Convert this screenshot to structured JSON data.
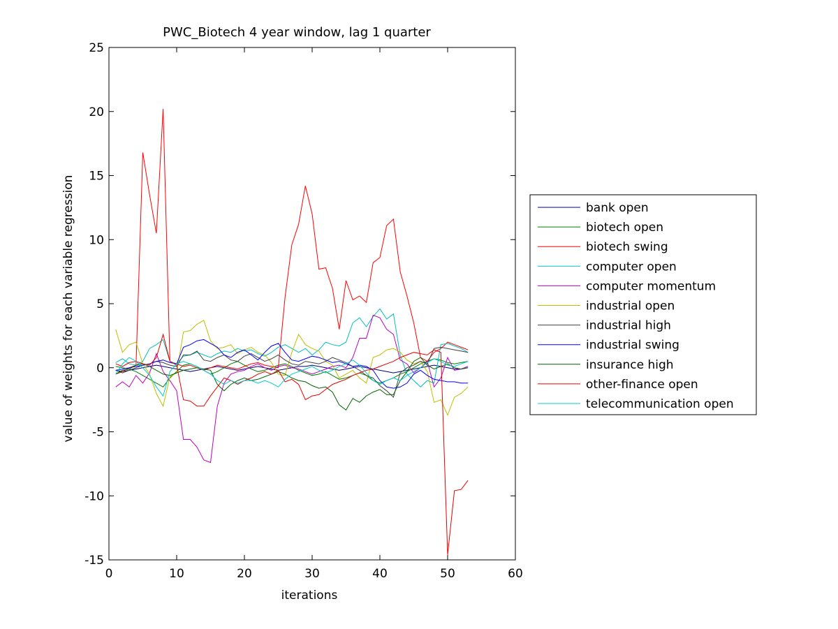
{
  "chart_data": {
    "type": "line",
    "title": "PWC_Biotech 4 year window, lag 1 quarter",
    "xlabel": "iterations",
    "ylabel": "value of weights for each variable regression",
    "xlim": [
      0,
      60
    ],
    "ylim": [
      -15,
      25
    ],
    "xticks": [
      "0",
      "10",
      "20",
      "30",
      "40",
      "50",
      "60"
    ],
    "yticks": [
      "-15",
      "-10",
      "-5",
      "0",
      "5",
      "10",
      "15",
      "20",
      "25"
    ],
    "grid": false,
    "legend_position": "right",
    "x": [
      1,
      2,
      3,
      4,
      5,
      6,
      7,
      8,
      9,
      10,
      11,
      12,
      13,
      14,
      15,
      16,
      17,
      18,
      19,
      20,
      21,
      22,
      23,
      24,
      25,
      26,
      27,
      28,
      29,
      30,
      31,
      32,
      33,
      34,
      35,
      36,
      37,
      38,
      39,
      40,
      41,
      42,
      43,
      44,
      45,
      46,
      47,
      48,
      49,
      50,
      51,
      52,
      53
    ],
    "series": [
      {
        "name": "bank open",
        "color": "#000080",
        "values": [
          -0.2,
          -0.3,
          -0.2,
          -0.1,
          0.0,
          0.1,
          0.2,
          0.1,
          0.0,
          -0.1,
          -0.2,
          -0.3,
          -0.2,
          -0.1,
          0.0,
          0.1,
          0.0,
          -0.1,
          -0.2,
          -0.1,
          0.0,
          0.1,
          0.0,
          -0.1,
          -0.2,
          -0.1,
          0.0,
          0.1,
          0.1,
          0.2,
          0.1,
          0.0,
          -0.1,
          -0.2,
          -0.1,
          0.0,
          0.1,
          0.0,
          -0.1,
          -0.2,
          -0.3,
          -0.4,
          -0.3,
          -0.2,
          -0.1,
          0.0,
          0.1,
          0.2,
          0.1,
          0.0,
          -0.1,
          -0.1,
          0.0
        ]
      },
      {
        "name": "biotech open",
        "color": "#008000",
        "values": [
          0.1,
          0.0,
          -0.1,
          -0.3,
          -0.6,
          -0.9,
          -1.2,
          -1.5,
          -0.8,
          -0.3,
          0.2,
          0.3,
          0.1,
          -0.2,
          -0.5,
          -0.3,
          0.0,
          0.3,
          0.5,
          0.2,
          -0.1,
          -0.3,
          -0.2,
          0.0,
          0.2,
          0.3,
          0.1,
          -0.2,
          -0.4,
          -0.6,
          -0.5,
          -0.3,
          -0.6,
          -0.9,
          -0.8,
          -0.6,
          -0.4,
          -0.6,
          -1.0,
          -1.2,
          -1.0,
          -0.8,
          -0.5,
          -0.3,
          0.0,
          0.3,
          0.5,
          0.7,
          0.6,
          0.4,
          0.3,
          0.4,
          0.5
        ]
      },
      {
        "name": "biotech swing",
        "color": "#ff0000",
        "values": [
          -0.5,
          -0.3,
          0.0,
          0.2,
          16.8,
          13.5,
          10.5,
          20.2,
          0.5,
          0.3,
          0.1,
          0.2,
          0.0,
          -0.2,
          0.0,
          0.2,
          0.1,
          0.0,
          -0.1,
          0.1,
          0.3,
          0.4,
          0.2,
          0.1,
          0.0,
          5.5,
          9.6,
          11.2,
          14.2,
          12.0,
          7.7,
          7.8,
          6.2,
          3.0,
          6.8,
          5.3,
          5.6,
          5.1,
          8.2,
          8.6,
          11.1,
          11.6,
          7.5,
          5.6,
          3.5,
          0.8,
          0.5,
          1.2,
          1.5,
          2.0,
          1.8,
          1.6,
          1.4
        ]
      },
      {
        "name": "computer open",
        "color": "#00bfbf",
        "values": [
          0.4,
          0.7,
          0.3,
          0.2,
          0.5,
          1.5,
          1.8,
          2.2,
          0.5,
          0.3,
          0.9,
          1.0,
          1.2,
          1.0,
          0.8,
          1.1,
          1.3,
          1.2,
          1.5,
          1.3,
          1.4,
          1.1,
          0.9,
          1.2,
          1.6,
          1.8,
          1.5,
          1.2,
          1.5,
          1.0,
          1.4,
          2.0,
          1.8,
          1.7,
          2.0,
          3.5,
          3.9,
          3.2,
          4.0,
          4.6,
          3.8,
          4.2,
          1.0,
          -0.5,
          -1.0,
          -1.5,
          -1.0,
          -1.2,
          1.8,
          1.9,
          1.7,
          1.5,
          1.2
        ]
      },
      {
        "name": "computer momentum",
        "color": "#bf00bf",
        "values": [
          -1.5,
          -1.1,
          -1.5,
          -0.6,
          -1.2,
          -0.4,
          1.1,
          -0.3,
          -1.0,
          -1.8,
          -5.6,
          -5.6,
          -6.2,
          -7.2,
          -7.4,
          -3.0,
          -1.2,
          -0.5,
          -0.3,
          -0.2,
          0.1,
          0.3,
          0.0,
          -0.2,
          0.1,
          0.2,
          0.0,
          -0.1,
          -0.3,
          -0.5,
          -0.3,
          -0.1,
          0.1,
          0.2,
          0.0,
          0.8,
          2.3,
          2.3,
          4.1,
          3.9,
          3.0,
          2.6,
          0.6,
          0.3,
          -0.4,
          0.0,
          0.5,
          -1.5,
          -0.8,
          0.8,
          -0.2,
          -0.1,
          0.1
        ]
      },
      {
        "name": "industrial open",
        "color": "#bfbf00",
        "values": [
          3.0,
          1.2,
          1.8,
          2.0,
          0.3,
          -0.5,
          -2.0,
          -3.0,
          -0.7,
          -0.4,
          2.8,
          2.9,
          3.4,
          3.7,
          2.1,
          1.5,
          1.6,
          1.8,
          1.1,
          1.4,
          1.6,
          1.2,
          1.0,
          0.4,
          -0.5,
          -0.6,
          1.2,
          2.6,
          1.8,
          1.5,
          1.3,
          0.5,
          0.2,
          -0.8,
          -0.5,
          -0.2,
          -0.8,
          -1.2,
          0.8,
          1.0,
          1.4,
          1.5,
          1.2,
          0.6,
          0.3,
          0.5,
          -0.3,
          -2.7,
          -2.5,
          -3.7,
          -2.3,
          -2.0,
          -1.5
        ]
      },
      {
        "name": "industrial high",
        "color": "#404040",
        "values": [
          -0.2,
          -0.4,
          -0.2,
          0.0,
          0.2,
          0.3,
          0.5,
          0.4,
          0.2,
          0.1,
          1.0,
          1.0,
          1.3,
          0.6,
          0.5,
          0.8,
          1.0,
          0.6,
          0.5,
          0.9,
          1.1,
          0.8,
          0.5,
          0.7,
          1.0,
          0.6,
          0.3,
          0.2,
          0.5,
          0.4,
          0.3,
          0.5,
          0.8,
          0.6,
          0.4,
          0.1,
          -0.2,
          -0.6,
          -0.8,
          -1.4,
          -1.8,
          -2.3,
          -0.4,
          0.0,
          0.2,
          0.5,
          0.3,
          1.5,
          1.6,
          1.5,
          1.4,
          1.3,
          1.2
        ]
      },
      {
        "name": "industrial swing",
        "color": "#0000ff",
        "values": [
          -0.2,
          -0.1,
          0.0,
          0.1,
          0.2,
          0.3,
          0.5,
          0.6,
          0.4,
          0.3,
          1.6,
          1.8,
          2.1,
          2.2,
          1.9,
          1.6,
          1.0,
          0.8,
          1.2,
          1.4,
          1.0,
          0.6,
          1.2,
          1.7,
          1.9,
          1.2,
          0.6,
          0.5,
          0.7,
          0.9,
          0.8,
          0.6,
          0.4,
          0.5,
          0.3,
          0.1,
          0.2,
          0.1,
          -0.2,
          -1.0,
          -1.5,
          -1.6,
          -1.5,
          -1.2,
          -0.5,
          -0.2,
          -0.6,
          -0.9,
          -1.0,
          -1.1,
          -1.1,
          -1.2,
          -1.2
        ]
      },
      {
        "name": "insurance high",
        "color": "#006400",
        "values": [
          -0.5,
          -0.2,
          -0.1,
          0.2,
          0.3,
          0.1,
          -0.2,
          -0.5,
          -0.6,
          -0.4,
          -0.2,
          -0.1,
          0.0,
          -0.1,
          -0.2,
          -1.3,
          -1.8,
          -1.3,
          -1.0,
          -0.8,
          -1.0,
          -0.9,
          -0.7,
          -0.5,
          -0.3,
          -0.5,
          -0.8,
          -1.0,
          -1.1,
          -1.4,
          -1.6,
          -1.5,
          -1.9,
          -2.9,
          -3.3,
          -2.4,
          -2.7,
          -2.2,
          -1.9,
          -1.7,
          -2.1,
          -2.1,
          -1.0,
          -0.3,
          0.5,
          0.8,
          0.2,
          -0.1,
          0.1,
          0.3,
          0.0,
          -0.1,
          0.0
        ]
      },
      {
        "name": "other-finance open",
        "color": "#e60000",
        "values": [
          0.3,
          0.1,
          0.4,
          0.5,
          0.3,
          0.2,
          0.8,
          2.6,
          0.5,
          0.2,
          -2.5,
          -2.6,
          -3.0,
          -3.0,
          -2.2,
          -1.5,
          -0.8,
          -1.0,
          -1.3,
          -1.0,
          -0.8,
          -0.5,
          -0.3,
          -0.5,
          -0.2,
          -1.1,
          -0.9,
          -1.3,
          -2.5,
          -2.2,
          -2.1,
          -1.7,
          -1.3,
          -1.1,
          -0.9,
          -0.6,
          -0.4,
          -0.2,
          -0.1,
          0.1,
          0.3,
          0.5,
          0.8,
          1.0,
          1.2,
          1.1,
          1.0,
          1.4,
          1.2,
          -14.6,
          -9.6,
          -9.5,
          -8.8
        ]
      },
      {
        "name": "telecommunication open",
        "color": "#00cccc",
        "values": [
          -0.5,
          0.3,
          0.8,
          0.5,
          0.0,
          -0.6,
          -1.5,
          -2.2,
          -0.3,
          0.3,
          0.5,
          0.3,
          0.1,
          -0.2,
          -0.5,
          -1.0,
          -1.3,
          -1.0,
          -1.2,
          -1.0,
          -1.0,
          -1.2,
          -1.0,
          -1.2,
          -1.5,
          -0.9,
          -0.5,
          -0.3,
          -0.1,
          0.1,
          -0.2,
          -0.4,
          -0.2,
          0.1,
          0.3,
          0.6,
          0.2,
          -0.4,
          -1.0,
          -1.3,
          -1.0,
          -0.8,
          -1.0,
          -0.6,
          -0.3,
          0.0,
          0.4,
          0.7,
          0.5,
          0.2,
          0.1,
          0.3,
          0.5
        ]
      }
    ]
  }
}
